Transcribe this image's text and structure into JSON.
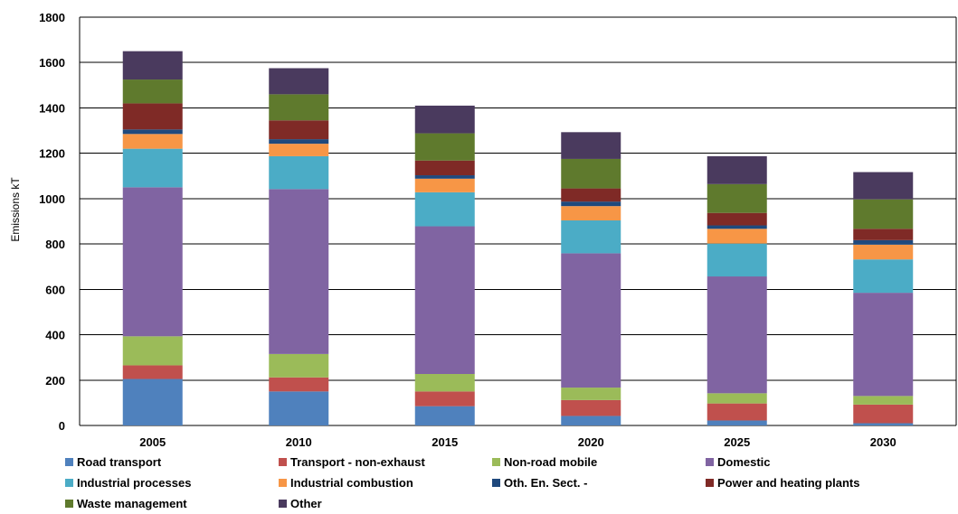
{
  "chart_data": {
    "type": "bar",
    "stacked": true,
    "ylabel": "Emissions kT",
    "ylim": [
      0,
      1800
    ],
    "yticks": [
      0,
      200,
      400,
      600,
      800,
      1000,
      1200,
      1400,
      1600,
      1800
    ],
    "grid": true,
    "legend_position": "bottom",
    "categories": [
      "2005",
      "2010",
      "2015",
      "2020",
      "2025",
      "2030"
    ],
    "series": [
      {
        "name": "Road transport",
        "color": "#4f81bd",
        "values": [
          205,
          150,
          85,
          42,
          22,
          10
        ]
      },
      {
        "name": "Transport - non-exhaust",
        "color": "#c0504d",
        "values": [
          60,
          62,
          65,
          70,
          75,
          82
        ]
      },
      {
        "name": "Non-road mobile",
        "color": "#9bbb59",
        "values": [
          128,
          103,
          77,
          55,
          45,
          38
        ]
      },
      {
        "name": "Domestic",
        "color": "#8064a2",
        "values": [
          657,
          727,
          651,
          592,
          515,
          455
        ]
      },
      {
        "name": "Industrial processes",
        "color": "#4bacc6",
        "values": [
          170,
          145,
          150,
          145,
          145,
          147
        ]
      },
      {
        "name": "Industrial combustion",
        "color": "#f79646",
        "values": [
          65,
          55,
          60,
          63,
          65,
          65
        ]
      },
      {
        "name": "Oth. En. Sect. -",
        "color": "#1f497d",
        "values": [
          20,
          20,
          15,
          20,
          15,
          20
        ]
      },
      {
        "name": "Power and heating plants",
        "color": "#7f2a26",
        "values": [
          115,
          83,
          65,
          58,
          55,
          50
        ]
      },
      {
        "name": "Waste management",
        "color": "#5f7a2d",
        "values": [
          105,
          115,
          120,
          130,
          127,
          130
        ]
      },
      {
        "name": "Other",
        "color": "#4a3a5e",
        "values": [
          125,
          115,
          122,
          118,
          123,
          120
        ]
      }
    ]
  }
}
